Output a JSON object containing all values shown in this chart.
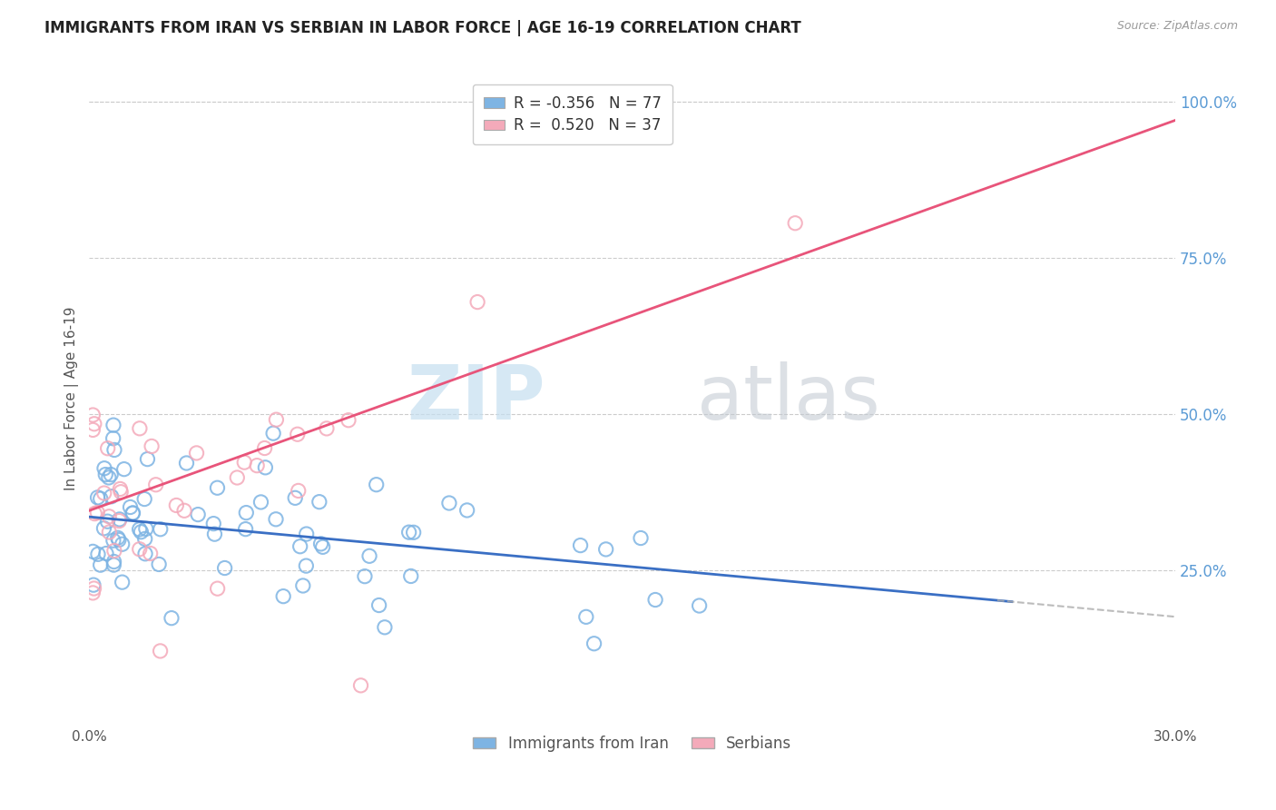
{
  "title": "IMMIGRANTS FROM IRAN VS SERBIAN IN LABOR FORCE | AGE 16-19 CORRELATION CHART",
  "source": "Source: ZipAtlas.com",
  "ylabel": "In Labor Force | Age 16-19",
  "ytick_labels": [
    "25.0%",
    "50.0%",
    "75.0%",
    "100.0%"
  ],
  "ytick_values": [
    0.25,
    0.5,
    0.75,
    1.0
  ],
  "xmin": 0.0,
  "xmax": 0.3,
  "ymin": 0.0,
  "ymax": 1.05,
  "iran_color": "#7EB4E3",
  "serbian_color": "#F4AABA",
  "iran_line_color": "#3A6FC4",
  "serbian_line_color": "#E8547A",
  "legend_iran_label": "R = -0.356   N = 77",
  "legend_serbian_label": "R =  0.520   N = 37",
  "legend_bottom_iran": "Immigrants from Iran",
  "legend_bottom_serbian": "Serbians",
  "iran_R": -0.356,
  "iranian_N": 77,
  "serbian_R": 0.52,
  "serbian_N": 37,
  "iran_line_x0": 0.0,
  "iran_line_y0": 0.335,
  "iran_line_x1": 0.3,
  "iran_line_y1": 0.175,
  "serbian_line_x0": 0.0,
  "serbian_line_y0": 0.345,
  "serbian_line_x1": 0.3,
  "serbian_line_y1": 0.97
}
